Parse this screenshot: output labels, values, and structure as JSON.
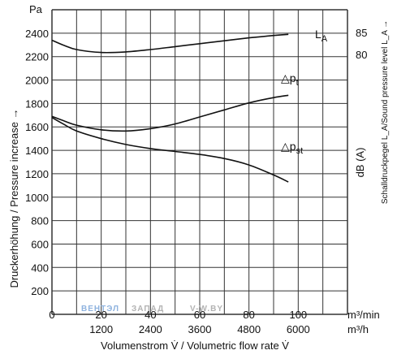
{
  "chart_data": {
    "type": "line",
    "x_axis": {
      "label": "Volumenstrom V̇ / Volumetric flow rate V̇",
      "range": [
        0,
        120
      ],
      "ticks_m3min": [
        "0",
        "20",
        "40",
        "60",
        "80",
        "100"
      ],
      "ticks_m3h": [
        "1200",
        "2400",
        "3600",
        "4800",
        "6000"
      ],
      "unit_m3min": "m³/min",
      "unit_m3h": "m³/h"
    },
    "y_axis": {
      "label": "Druckerhöhung / Pressure increase →",
      "unit": "Pa",
      "range": [
        0,
        2600
      ],
      "ticks": [
        "200",
        "400",
        "600",
        "800",
        "1000",
        "1200",
        "1400",
        "1600",
        "1800",
        "2000",
        "2200",
        "2400"
      ]
    },
    "y2_axis": {
      "label": "Schalldruckpegel L_A/Sound pressure level L_A →",
      "unit": "dB (A)",
      "ticks": [
        "85",
        "80"
      ]
    },
    "grid": true,
    "series": [
      {
        "name": "L_A",
        "label_main": "L",
        "label_sub": "A",
        "axis": "sound",
        "x": [
          0,
          5,
          10,
          20,
          30,
          40,
          50,
          60,
          70,
          80,
          90,
          96
        ],
        "y": [
          2340,
          2295,
          2260,
          2235,
          2240,
          2260,
          2285,
          2310,
          2335,
          2360,
          2380,
          2390
        ]
      },
      {
        "name": "Δp_t",
        "label_main": "△p",
        "label_sub": "t",
        "axis": "pressure",
        "x": [
          0,
          5,
          10,
          20,
          30,
          40,
          50,
          60,
          70,
          80,
          90,
          96
        ],
        "y": [
          1690,
          1650,
          1615,
          1575,
          1565,
          1585,
          1625,
          1685,
          1745,
          1805,
          1850,
          1870
        ]
      },
      {
        "name": "Δp_st",
        "label_main": "△p",
        "label_sub": "st",
        "axis": "pressure",
        "x": [
          0,
          5,
          10,
          20,
          30,
          40,
          50,
          60,
          70,
          80,
          90,
          96
        ],
        "y": [
          1680,
          1620,
          1565,
          1500,
          1450,
          1415,
          1390,
          1365,
          1330,
          1275,
          1190,
          1130
        ]
      }
    ]
  },
  "watermark": {
    "part1": "ВЕНТЭЛ",
    "part2": "ЗАПАД",
    "part3": "V-W.BY"
  },
  "colors": {
    "line": "#111111",
    "grid": "#333333",
    "wm_blue": "#8fb3df",
    "wm_gray": "#b3b3b3"
  }
}
